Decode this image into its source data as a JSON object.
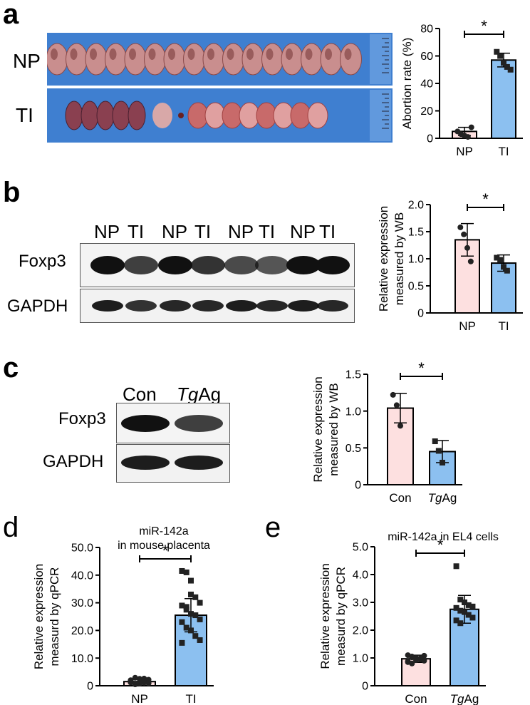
{
  "panels": {
    "a": {
      "letter": "a",
      "row_labels": [
        "NP",
        "TI"
      ]
    },
    "b": {
      "letter": "b",
      "lane_labels": [
        "NP",
        "TI",
        "NP",
        "TI",
        "NP",
        "TI",
        "NP",
        "TI"
      ],
      "band_labels": [
        "Foxp3",
        "GAPDH"
      ]
    },
    "c": {
      "letter": "c",
      "lane_labels_con": "Con",
      "lane_labels_tg_italic": "Tg",
      "lane_labels_tg_rest": "Ag",
      "band_labels": [
        "Foxp3",
        "GAPDH"
      ]
    },
    "d": {
      "letter": "d"
    },
    "e": {
      "letter": "e"
    }
  },
  "colors": {
    "pink": "#fde0e0",
    "blue": "#8cc0f0",
    "photo_bg": "#3f7fd0"
  },
  "chart_data": [
    {
      "id": "a",
      "type": "bar",
      "title": "",
      "categories": [
        "NP",
        "TI"
      ],
      "values": [
        5,
        57
      ],
      "errors": [
        3,
        5
      ],
      "ylabel": "Abortion rate (%)",
      "ylim": [
        0,
        80
      ],
      "yticks": [
        0,
        20,
        40,
        60,
        80
      ],
      "ytick_labels": [
        "0",
        "20",
        "40",
        "60",
        "80"
      ],
      "significance": "*",
      "points": [
        [
          5,
          3,
          2,
          1,
          8
        ],
        [
          63,
          60,
          55,
          52,
          50
        ]
      ]
    },
    {
      "id": "b",
      "type": "bar",
      "title": "",
      "categories": [
        "NP",
        "TI"
      ],
      "values": [
        1.35,
        0.92
      ],
      "errors": [
        0.3,
        0.15
      ],
      "ylabel": "Relative expression measured by WB",
      "ylim": [
        0,
        2.0
      ],
      "yticks": [
        0,
        0.5,
        1.0,
        1.5,
        2.0
      ],
      "ytick_labels": [
        "0",
        "0.5",
        "1.0",
        "1.5",
        "2.0"
      ],
      "significance": "*",
      "points": [
        [
          1.58,
          1.45,
          1.2,
          0.95
        ],
        [
          1.02,
          0.98,
          0.85,
          0.78
        ]
      ]
    },
    {
      "id": "c",
      "type": "bar",
      "title": "",
      "categories": [
        "Con",
        "TgAg"
      ],
      "values": [
        1.04,
        0.45
      ],
      "errors": [
        0.2,
        0.15
      ],
      "ylabel": "Relative expression measured by WB",
      "ylim": [
        0,
        1.5
      ],
      "yticks": [
        0,
        0.5,
        1.0,
        1.5
      ],
      "ytick_labels": [
        "0",
        "0.5",
        "1.0",
        "1.5"
      ],
      "significance": "*",
      "points": [
        [
          1.22,
          1.08,
          0.8
        ],
        [
          0.59,
          0.46,
          0.3
        ]
      ]
    },
    {
      "id": "d",
      "type": "bar",
      "title": "miR-142a in mouse placenta",
      "title_lines": [
        "miR-142a",
        "in mouse placenta"
      ],
      "categories": [
        "NP",
        "TI"
      ],
      "values": [
        1.5,
        25.5
      ],
      "errors": [
        0.8,
        6.0
      ],
      "ylabel": "Relative expression measurd by qPCR",
      "ylim": [
        0,
        50
      ],
      "yticks": [
        0,
        10,
        20,
        30,
        40,
        50
      ],
      "ytick_labels": [
        "0",
        "10.0",
        "20.0",
        "30.0",
        "40.0",
        "50.0"
      ],
      "significance": "*",
      "points": [
        [
          1.2,
          0.6,
          2.5,
          1.8,
          0.9,
          1.5,
          2.9,
          0.8,
          1.1,
          2.2,
          1.7,
          0.5,
          1.4,
          2.6,
          1.0,
          2.0
        ],
        [
          41.5,
          41.0,
          38.0,
          32.0,
          30.0,
          29.0,
          27.5,
          26.0,
          25.5,
          24.0,
          23.0,
          21.0,
          20.0,
          18.0,
          16.5,
          15.5,
          28.5,
          33.0
        ]
      ]
    },
    {
      "id": "e",
      "type": "bar",
      "title": "miR-142a in EL4 cells",
      "categories": [
        "Con",
        "TgAg"
      ],
      "values": [
        0.97,
        2.75
      ],
      "errors": [
        0.13,
        0.5
      ],
      "ylabel": "Relative expression measurd by qPCR",
      "ylim": [
        0,
        5
      ],
      "yticks": [
        0,
        1,
        2,
        3,
        4,
        5
      ],
      "ytick_labels": [
        "0",
        "1.0",
        "2.0",
        "3.0",
        "4.0",
        "5.0"
      ],
      "significance": "*",
      "points": [
        [
          1.1,
          1.05,
          1.0,
          0.95,
          0.9,
          0.85,
          1.02,
          0.92,
          0.98,
          1.08,
          0.88,
          0.8
        ],
        [
          4.3,
          3.1,
          3.0,
          2.9,
          2.85,
          2.8,
          2.7,
          2.65,
          2.55,
          2.45,
          2.35,
          2.25
        ]
      ]
    }
  ]
}
